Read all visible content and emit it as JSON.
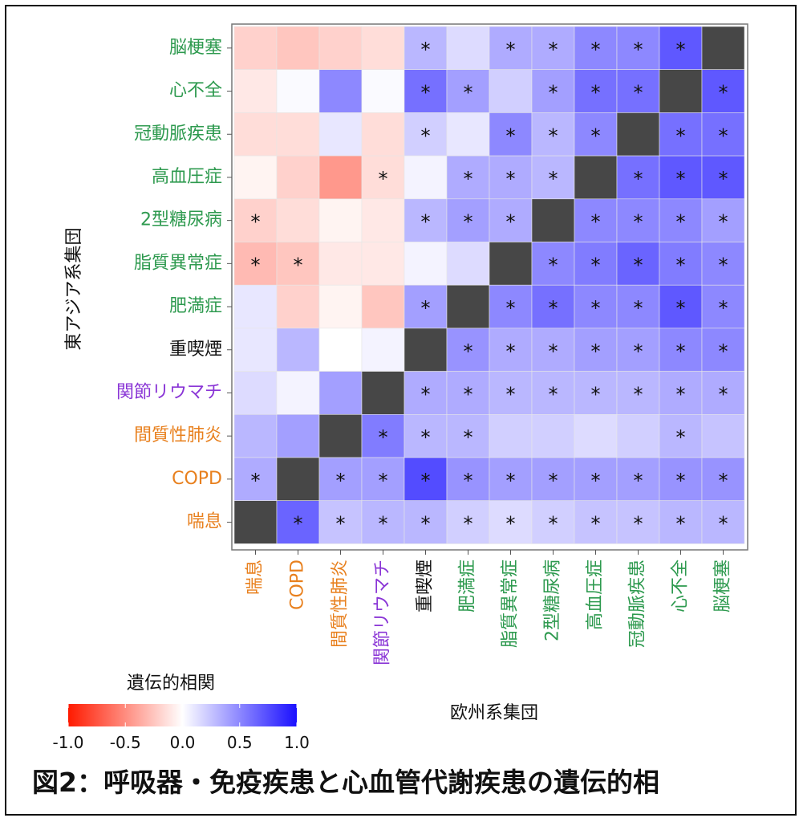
{
  "colors": {
    "respiratory": "#e8801e",
    "immune": "#8a35d6",
    "smoking": "#111111",
    "cardiometabolic": "#2e9a4f",
    "diagonal": "#474747",
    "negative_end": "#ff1a00",
    "positive_end": "#1a10ff"
  },
  "chart_data": {
    "type": "heatmap",
    "title": "",
    "xlabel": "欧州系集団",
    "ylabel": "東アジア系集団",
    "x_categories": [
      "喘息",
      "COPD",
      "間質性肺炎",
      "関節リウマチ",
      "重喫煙",
      "肥満症",
      "脂質異常症",
      "2型糖尿病",
      "高血圧症",
      "冠動脈疾患",
      "心不全",
      "脳梗塞"
    ],
    "x_category_groups": [
      "respiratory",
      "respiratory",
      "respiratory",
      "immune",
      "smoking",
      "cardiometabolic",
      "cardiometabolic",
      "cardiometabolic",
      "cardiometabolic",
      "cardiometabolic",
      "cardiometabolic",
      "cardiometabolic"
    ],
    "y_categories": [
      "脳梗塞",
      "心不全",
      "冠動脈疾患",
      "高血圧症",
      "2型糖尿病",
      "脂質異常症",
      "肥満症",
      "重喫煙",
      "関節リウマチ",
      "間質性肺炎",
      "COPD",
      "喘息"
    ],
    "y_category_groups": [
      "cardiometabolic",
      "cardiometabolic",
      "cardiometabolic",
      "cardiometabolic",
      "cardiometabolic",
      "cardiometabolic",
      "cardiometabolic",
      "smoking",
      "immune",
      "respiratory",
      "respiratory",
      "respiratory"
    ],
    "values": [
      [
        -0.2,
        -0.25,
        -0.2,
        -0.15,
        0.3,
        0.15,
        0.35,
        0.35,
        0.5,
        0.5,
        0.7,
        null
      ],
      [
        -0.1,
        0.02,
        0.5,
        0.02,
        0.6,
        0.4,
        0.2,
        0.4,
        0.6,
        0.6,
        null,
        0.7
      ],
      [
        -0.15,
        -0.15,
        0.1,
        -0.15,
        0.2,
        0.1,
        0.5,
        0.3,
        0.5,
        null,
        0.6,
        0.6
      ],
      [
        -0.05,
        -0.2,
        -0.45,
        -0.15,
        0.05,
        0.35,
        0.35,
        0.3,
        null,
        0.6,
        0.7,
        0.7
      ],
      [
        -0.2,
        -0.15,
        -0.05,
        -0.1,
        0.3,
        0.4,
        0.35,
        null,
        0.5,
        0.5,
        0.5,
        0.4
      ],
      [
        -0.3,
        -0.25,
        -0.1,
        -0.1,
        0.05,
        0.15,
        null,
        0.5,
        0.55,
        0.65,
        0.55,
        0.5
      ],
      [
        0.1,
        -0.2,
        -0.05,
        -0.25,
        0.4,
        null,
        0.5,
        0.6,
        0.5,
        0.5,
        0.7,
        0.5
      ],
      [
        0.1,
        0.3,
        0.0,
        0.05,
        null,
        0.45,
        0.35,
        0.35,
        0.4,
        0.4,
        0.5,
        0.5
      ],
      [
        0.15,
        0.05,
        0.4,
        null,
        0.35,
        0.35,
        0.3,
        0.3,
        0.3,
        0.3,
        0.35,
        0.35
      ],
      [
        0.3,
        0.4,
        null,
        0.55,
        0.3,
        0.3,
        0.2,
        0.2,
        0.15,
        0.2,
        0.3,
        0.25
      ],
      [
        0.35,
        null,
        0.4,
        0.4,
        0.75,
        0.45,
        0.4,
        0.4,
        0.4,
        0.4,
        0.45,
        0.45
      ],
      [
        null,
        0.65,
        0.25,
        0.3,
        0.3,
        0.2,
        0.15,
        0.2,
        0.25,
        0.25,
        0.3,
        0.3
      ]
    ],
    "significant": [
      [
        false,
        false,
        false,
        false,
        true,
        false,
        true,
        true,
        true,
        true,
        true,
        false
      ],
      [
        false,
        false,
        false,
        false,
        true,
        true,
        false,
        true,
        true,
        true,
        false,
        true
      ],
      [
        false,
        false,
        false,
        false,
        true,
        false,
        true,
        true,
        true,
        false,
        true,
        true
      ],
      [
        false,
        false,
        false,
        true,
        false,
        true,
        true,
        true,
        false,
        true,
        true,
        true
      ],
      [
        true,
        false,
        false,
        false,
        true,
        true,
        true,
        false,
        true,
        true,
        true,
        true
      ],
      [
        true,
        true,
        false,
        false,
        false,
        false,
        false,
        true,
        true,
        true,
        true,
        true
      ],
      [
        false,
        false,
        false,
        false,
        true,
        false,
        true,
        true,
        true,
        true,
        true,
        true
      ],
      [
        false,
        false,
        false,
        false,
        false,
        true,
        true,
        true,
        true,
        true,
        true,
        true
      ],
      [
        false,
        false,
        false,
        false,
        true,
        true,
        true,
        true,
        true,
        true,
        true,
        true
      ],
      [
        false,
        false,
        false,
        true,
        true,
        true,
        false,
        false,
        false,
        false,
        true,
        false
      ],
      [
        true,
        false,
        true,
        true,
        true,
        true,
        true,
        true,
        true,
        true,
        true,
        true
      ],
      [
        false,
        true,
        true,
        true,
        true,
        true,
        true,
        true,
        true,
        true,
        true,
        true
      ]
    ],
    "significance_marker": "*",
    "color_scale": {
      "title": "遺伝的相関",
      "min": -1.0,
      "max": 1.0,
      "ticks": [
        "-1.0",
        "-0.5",
        "0.0",
        "0.5",
        "1.0"
      ],
      "low_color": "#ff1a00",
      "mid_color": "#ffffff",
      "high_color": "#1a10ff"
    },
    "legend_position": "bottom-left",
    "grid": false
  },
  "caption": "図2：呼吸器・免疫疾患と心血管代謝疾患の遺伝的相"
}
